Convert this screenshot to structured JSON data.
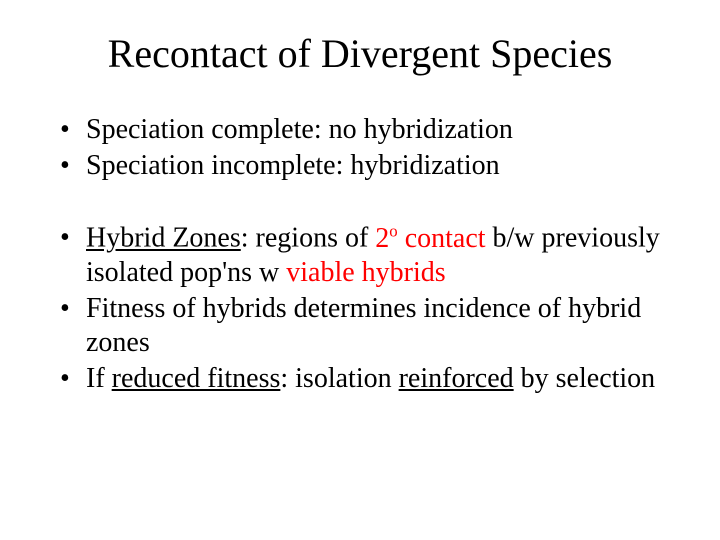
{
  "colors": {
    "background": "#ffffff",
    "text": "#000000",
    "accent_red": "#ff0000"
  },
  "typography": {
    "family": "Times New Roman",
    "title_fontsize": 40,
    "body_fontsize": 28,
    "title_weight": "normal"
  },
  "title": "Recontact of Divergent Species",
  "group1": [
    {
      "text": "Speciation complete: no hybridization"
    },
    {
      "text": "Speciation incomplete: hybridization"
    }
  ],
  "group2": {
    "b1_pre": "Hybrid Zones",
    "b1_mid": ": regions of ",
    "b1_contact_prefix": "2",
    "b1_contact_deg": "o",
    "b1_contact_word": " contact",
    "b1_post": " b/w previously isolated pop'ns w ",
    "b1_end": "viable hybrids",
    "b2": "Fitness of hybrids determines incidence of hybrid zones",
    "b3_pre": "If ",
    "b3_u1": "reduced fitness",
    "b3_mid": ": isolation ",
    "b3_u2": "reinforced",
    "b3_post": " by selection"
  }
}
